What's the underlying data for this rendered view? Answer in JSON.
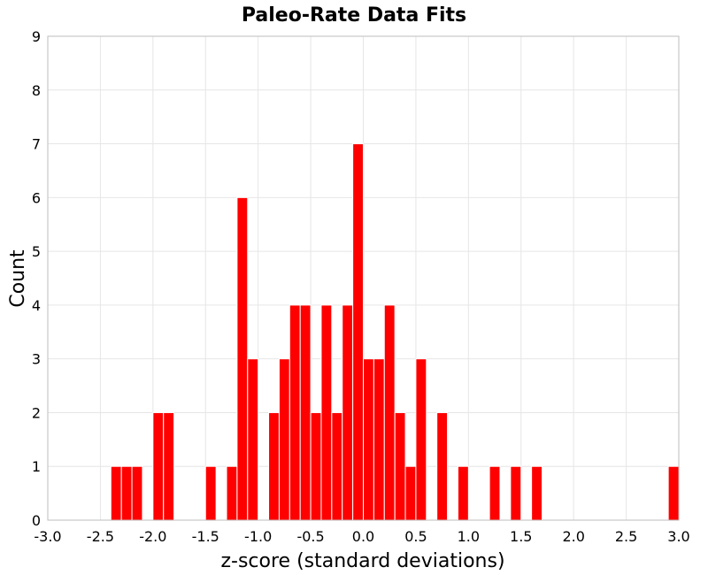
{
  "chart_data": {
    "type": "bar",
    "title": "Paleo-Rate Data Fits",
    "xlabel": "z-score (standard deviations)",
    "ylabel": "Count",
    "xlim": [
      -3.0,
      3.0
    ],
    "ylim": [
      0,
      9
    ],
    "x_ticks": [
      "-3.0",
      "-2.5",
      "-2.0",
      "-1.5",
      "-1.0",
      "-0.5",
      "0.0",
      "0.5",
      "1.0",
      "1.5",
      "2.0",
      "2.5",
      "3.0"
    ],
    "y_ticks": [
      "0",
      "1",
      "2",
      "3",
      "4",
      "5",
      "6",
      "7",
      "8",
      "9"
    ],
    "grid": true,
    "bar_color": "#ff0000",
    "bin_width": 0.1,
    "bins": [
      {
        "x": -2.35,
        "count": 1
      },
      {
        "x": -2.25,
        "count": 1
      },
      {
        "x": -2.15,
        "count": 1
      },
      {
        "x": -1.95,
        "count": 2
      },
      {
        "x": -1.85,
        "count": 2
      },
      {
        "x": -1.45,
        "count": 1
      },
      {
        "x": -1.25,
        "count": 1
      },
      {
        "x": -1.15,
        "count": 6
      },
      {
        "x": -1.05,
        "count": 3
      },
      {
        "x": -0.85,
        "count": 2
      },
      {
        "x": -0.75,
        "count": 3
      },
      {
        "x": -0.65,
        "count": 4
      },
      {
        "x": -0.55,
        "count": 4
      },
      {
        "x": -0.45,
        "count": 2
      },
      {
        "x": -0.35,
        "count": 4
      },
      {
        "x": -0.25,
        "count": 2
      },
      {
        "x": -0.15,
        "count": 4
      },
      {
        "x": -0.05,
        "count": 7
      },
      {
        "x": 0.05,
        "count": 3
      },
      {
        "x": 0.15,
        "count": 3
      },
      {
        "x": 0.25,
        "count": 4
      },
      {
        "x": 0.35,
        "count": 2
      },
      {
        "x": 0.45,
        "count": 1
      },
      {
        "x": 0.55,
        "count": 3
      },
      {
        "x": 0.75,
        "count": 2
      },
      {
        "x": 0.95,
        "count": 1
      },
      {
        "x": 1.25,
        "count": 1
      },
      {
        "x": 1.45,
        "count": 1
      },
      {
        "x": 1.65,
        "count": 1
      },
      {
        "x": 2.95,
        "count": 1
      }
    ]
  }
}
